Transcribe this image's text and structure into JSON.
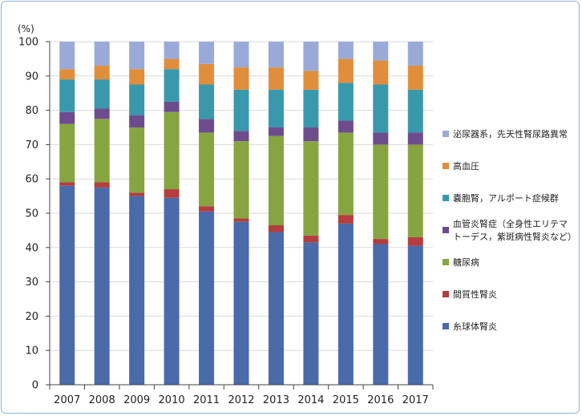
{
  "chart_data": {
    "type": "bar",
    "stacked": true,
    "y_unit": "(%)",
    "ylim": [
      0,
      100
    ],
    "y_ticks": [
      0,
      10,
      20,
      30,
      40,
      50,
      60,
      70,
      80,
      90,
      100
    ],
    "categories": [
      "2007",
      "2008",
      "2009",
      "2010",
      "2011",
      "2012",
      "2013",
      "2014",
      "2015",
      "2016",
      "2017"
    ],
    "legend_position": "right",
    "series": [
      {
        "name": "糸球体腎炎",
        "color": "#4a6aa9",
        "values": [
          58.0,
          57.5,
          55.0,
          54.5,
          50.5,
          47.5,
          44.5,
          41.5,
          47.0,
          41.0,
          40.5
        ]
      },
      {
        "name": "間質性腎炎",
        "color": "#b53d3d",
        "values": [
          1.0,
          1.5,
          1.0,
          2.5,
          1.5,
          1.0,
          2.0,
          2.0,
          2.5,
          1.5,
          2.5
        ]
      },
      {
        "name": "糖尿病",
        "color": "#86a540",
        "values": [
          17.0,
          18.5,
          19.0,
          22.5,
          21.5,
          22.5,
          26.0,
          27.5,
          24.0,
          27.5,
          27.0
        ]
      },
      {
        "name": "血管炎腎症（全身性エリテマトーデス，紫斑病性腎炎など）",
        "color": "#6d4c8e",
        "values": [
          3.5,
          3.0,
          3.5,
          3.0,
          4.0,
          3.0,
          2.5,
          4.0,
          3.5,
          3.5,
          3.5
        ]
      },
      {
        "name": "嚢胞腎，アルポート症候群",
        "color": "#3a98ad",
        "values": [
          9.5,
          8.5,
          9.0,
          9.5,
          10.0,
          12.0,
          11.0,
          11.0,
          11.0,
          14.0,
          12.5
        ]
      },
      {
        "name": "高血圧",
        "color": "#e08e3c",
        "values": [
          3.0,
          4.0,
          4.5,
          3.0,
          6.0,
          6.5,
          6.5,
          5.5,
          7.0,
          7.0,
          7.0
        ]
      },
      {
        "name": "泌尿器系，先天性腎尿路異常",
        "color": "#9aaad8",
        "values": [
          8.0,
          7.0,
          8.0,
          5.0,
          6.5,
          7.5,
          7.5,
          8.5,
          5.0,
          5.5,
          7.0
        ]
      }
    ],
    "legend_order": [
      6,
      5,
      4,
      3,
      2,
      1,
      0
    ],
    "legend_lines": [
      [
        "泌尿器系，先天性腎尿路異常"
      ],
      [
        "高血圧"
      ],
      [
        "嚢胞腎，アルポート症候群"
      ],
      [
        "血管炎腎症（全身性エリテマ",
        "トーデス，紫斑病性腎炎など）"
      ],
      [
        "糖尿病"
      ],
      [
        "間質性腎炎"
      ],
      [
        "糸球体腎炎"
      ]
    ]
  }
}
